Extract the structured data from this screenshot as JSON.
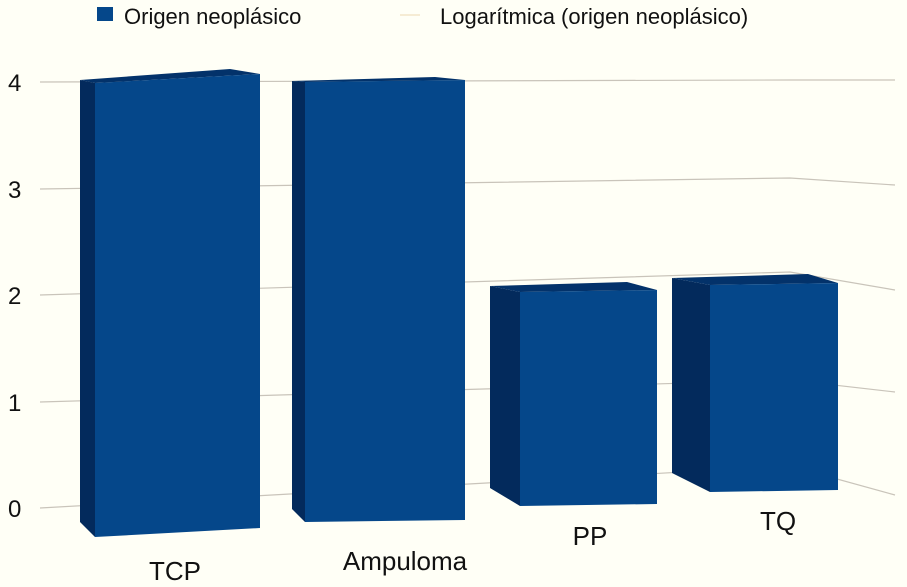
{
  "chart_data": {
    "type": "bar",
    "style": "3d",
    "title": "",
    "xlabel": "",
    "ylabel": "",
    "categories": [
      "TCP",
      "Ampuloma",
      "PP",
      "TQ"
    ],
    "series": [
      {
        "name": "Origen neoplásico",
        "values": [
          4,
          4,
          2,
          2
        ],
        "color": "#05478a"
      }
    ],
    "legend": [
      {
        "label": "Origen neoplásico",
        "color": "#05478a",
        "marker": "square"
      },
      {
        "label": "Logarítmica (origen neoplásico)",
        "color": "#f3e6c8",
        "marker": "line"
      }
    ],
    "legend_position": "top",
    "yticks": [
      "0",
      "1",
      "2",
      "3",
      "4"
    ],
    "ylim": [
      0,
      4
    ],
    "grid": true,
    "colors": {
      "front": "#05478a",
      "side": "#032a5c",
      "top": "#03326a",
      "grid": "#c9c4ba",
      "background": "#fffff6"
    }
  }
}
